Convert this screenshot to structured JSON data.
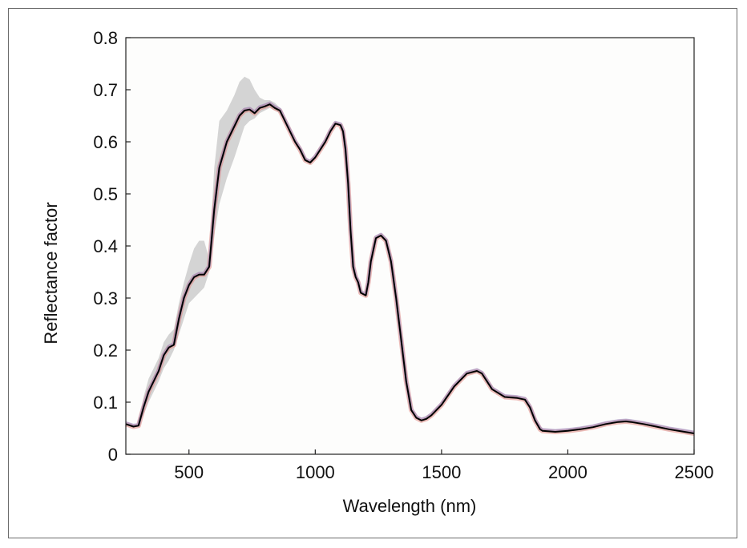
{
  "chart_data": {
    "type": "line",
    "title": "",
    "xlabel": "Wavelength (nm)",
    "ylabel": "Reflectance factor",
    "xlim": [
      250,
      2500
    ],
    "ylim": [
      0,
      0.8
    ],
    "xticks": [
      500,
      1000,
      1500,
      2000,
      2500
    ],
    "xtick_labels": [
      "500",
      "1000",
      "1500",
      "2000",
      "2500"
    ],
    "yticks": [
      0,
      0.1,
      0.2,
      0.3,
      0.4,
      0.5,
      0.6,
      0.7,
      0.8
    ],
    "ytick_labels": [
      "0",
      "0.1",
      "0.2",
      "0.3",
      "0.4",
      "0.5",
      "0.6",
      "0.7",
      "0.8"
    ],
    "grid": false,
    "legend": "none",
    "colors": {
      "background": "#fdfdfc",
      "mean_line": "#000000",
      "gray_band": "#cfcfcf",
      "red_band": "#e09088",
      "blue_band": "#8e86c4"
    },
    "series": [
      {
        "role": "mean",
        "x": [
          250,
          280,
          300,
          320,
          340,
          360,
          380,
          400,
          420,
          440,
          460,
          480,
          500,
          520,
          540,
          560,
          580,
          600,
          620,
          650,
          680,
          700,
          720,
          740,
          760,
          780,
          800,
          820,
          840,
          860,
          880,
          900,
          920,
          940,
          960,
          980,
          1000,
          1020,
          1040,
          1060,
          1080,
          1100,
          1110,
          1120,
          1130,
          1140,
          1150,
          1160,
          1170,
          1180,
          1200,
          1210,
          1220,
          1240,
          1260,
          1280,
          1300,
          1320,
          1340,
          1360,
          1380,
          1400,
          1420,
          1440,
          1460,
          1500,
          1550,
          1600,
          1640,
          1660,
          1700,
          1750,
          1800,
          1830,
          1850,
          1870,
          1890,
          1900,
          1950,
          2000,
          2050,
          2100,
          2150,
          2200,
          2230,
          2250,
          2300,
          2350,
          2400,
          2450,
          2500
        ],
        "y": [
          0.058,
          0.053,
          0.055,
          0.09,
          0.12,
          0.14,
          0.16,
          0.19,
          0.205,
          0.21,
          0.26,
          0.3,
          0.325,
          0.34,
          0.345,
          0.345,
          0.36,
          0.47,
          0.55,
          0.6,
          0.63,
          0.65,
          0.66,
          0.662,
          0.655,
          0.665,
          0.668,
          0.672,
          0.665,
          0.66,
          0.64,
          0.62,
          0.6,
          0.585,
          0.565,
          0.56,
          0.57,
          0.585,
          0.6,
          0.62,
          0.635,
          0.632,
          0.62,
          0.585,
          0.52,
          0.43,
          0.36,
          0.34,
          0.33,
          0.31,
          0.305,
          0.33,
          0.37,
          0.415,
          0.42,
          0.41,
          0.37,
          0.3,
          0.22,
          0.14,
          0.085,
          0.07,
          0.065,
          0.068,
          0.075,
          0.095,
          0.13,
          0.155,
          0.16,
          0.155,
          0.125,
          0.11,
          0.108,
          0.105,
          0.09,
          0.065,
          0.048,
          0.045,
          0.043,
          0.045,
          0.048,
          0.052,
          0.058,
          0.062,
          0.063,
          0.062,
          0.058,
          0.053,
          0.048,
          0.044,
          0.04
        ]
      }
    ],
    "bands": [
      {
        "color_key": "gray_band",
        "x": [
          300,
          320,
          340,
          360,
          380,
          400,
          420,
          440,
          460,
          480,
          500,
          520,
          540,
          560,
          580,
          600,
          620,
          650,
          680,
          700,
          720,
          740,
          760,
          780,
          800,
          820,
          840,
          860,
          880
        ],
        "lower": [
          0.055,
          0.075,
          0.1,
          0.12,
          0.14,
          0.165,
          0.18,
          0.2,
          0.23,
          0.26,
          0.29,
          0.3,
          0.31,
          0.32,
          0.35,
          0.42,
          0.48,
          0.53,
          0.57,
          0.6,
          0.63,
          0.64,
          0.645,
          0.655,
          0.66,
          0.665,
          0.66,
          0.655,
          0.64
        ],
        "upper": [
          0.06,
          0.11,
          0.145,
          0.165,
          0.185,
          0.215,
          0.23,
          0.24,
          0.29,
          0.33,
          0.365,
          0.395,
          0.41,
          0.41,
          0.375,
          0.55,
          0.64,
          0.66,
          0.69,
          0.715,
          0.725,
          0.72,
          0.7,
          0.685,
          0.68,
          0.68,
          0.675,
          0.665,
          0.645
        ]
      }
    ]
  }
}
